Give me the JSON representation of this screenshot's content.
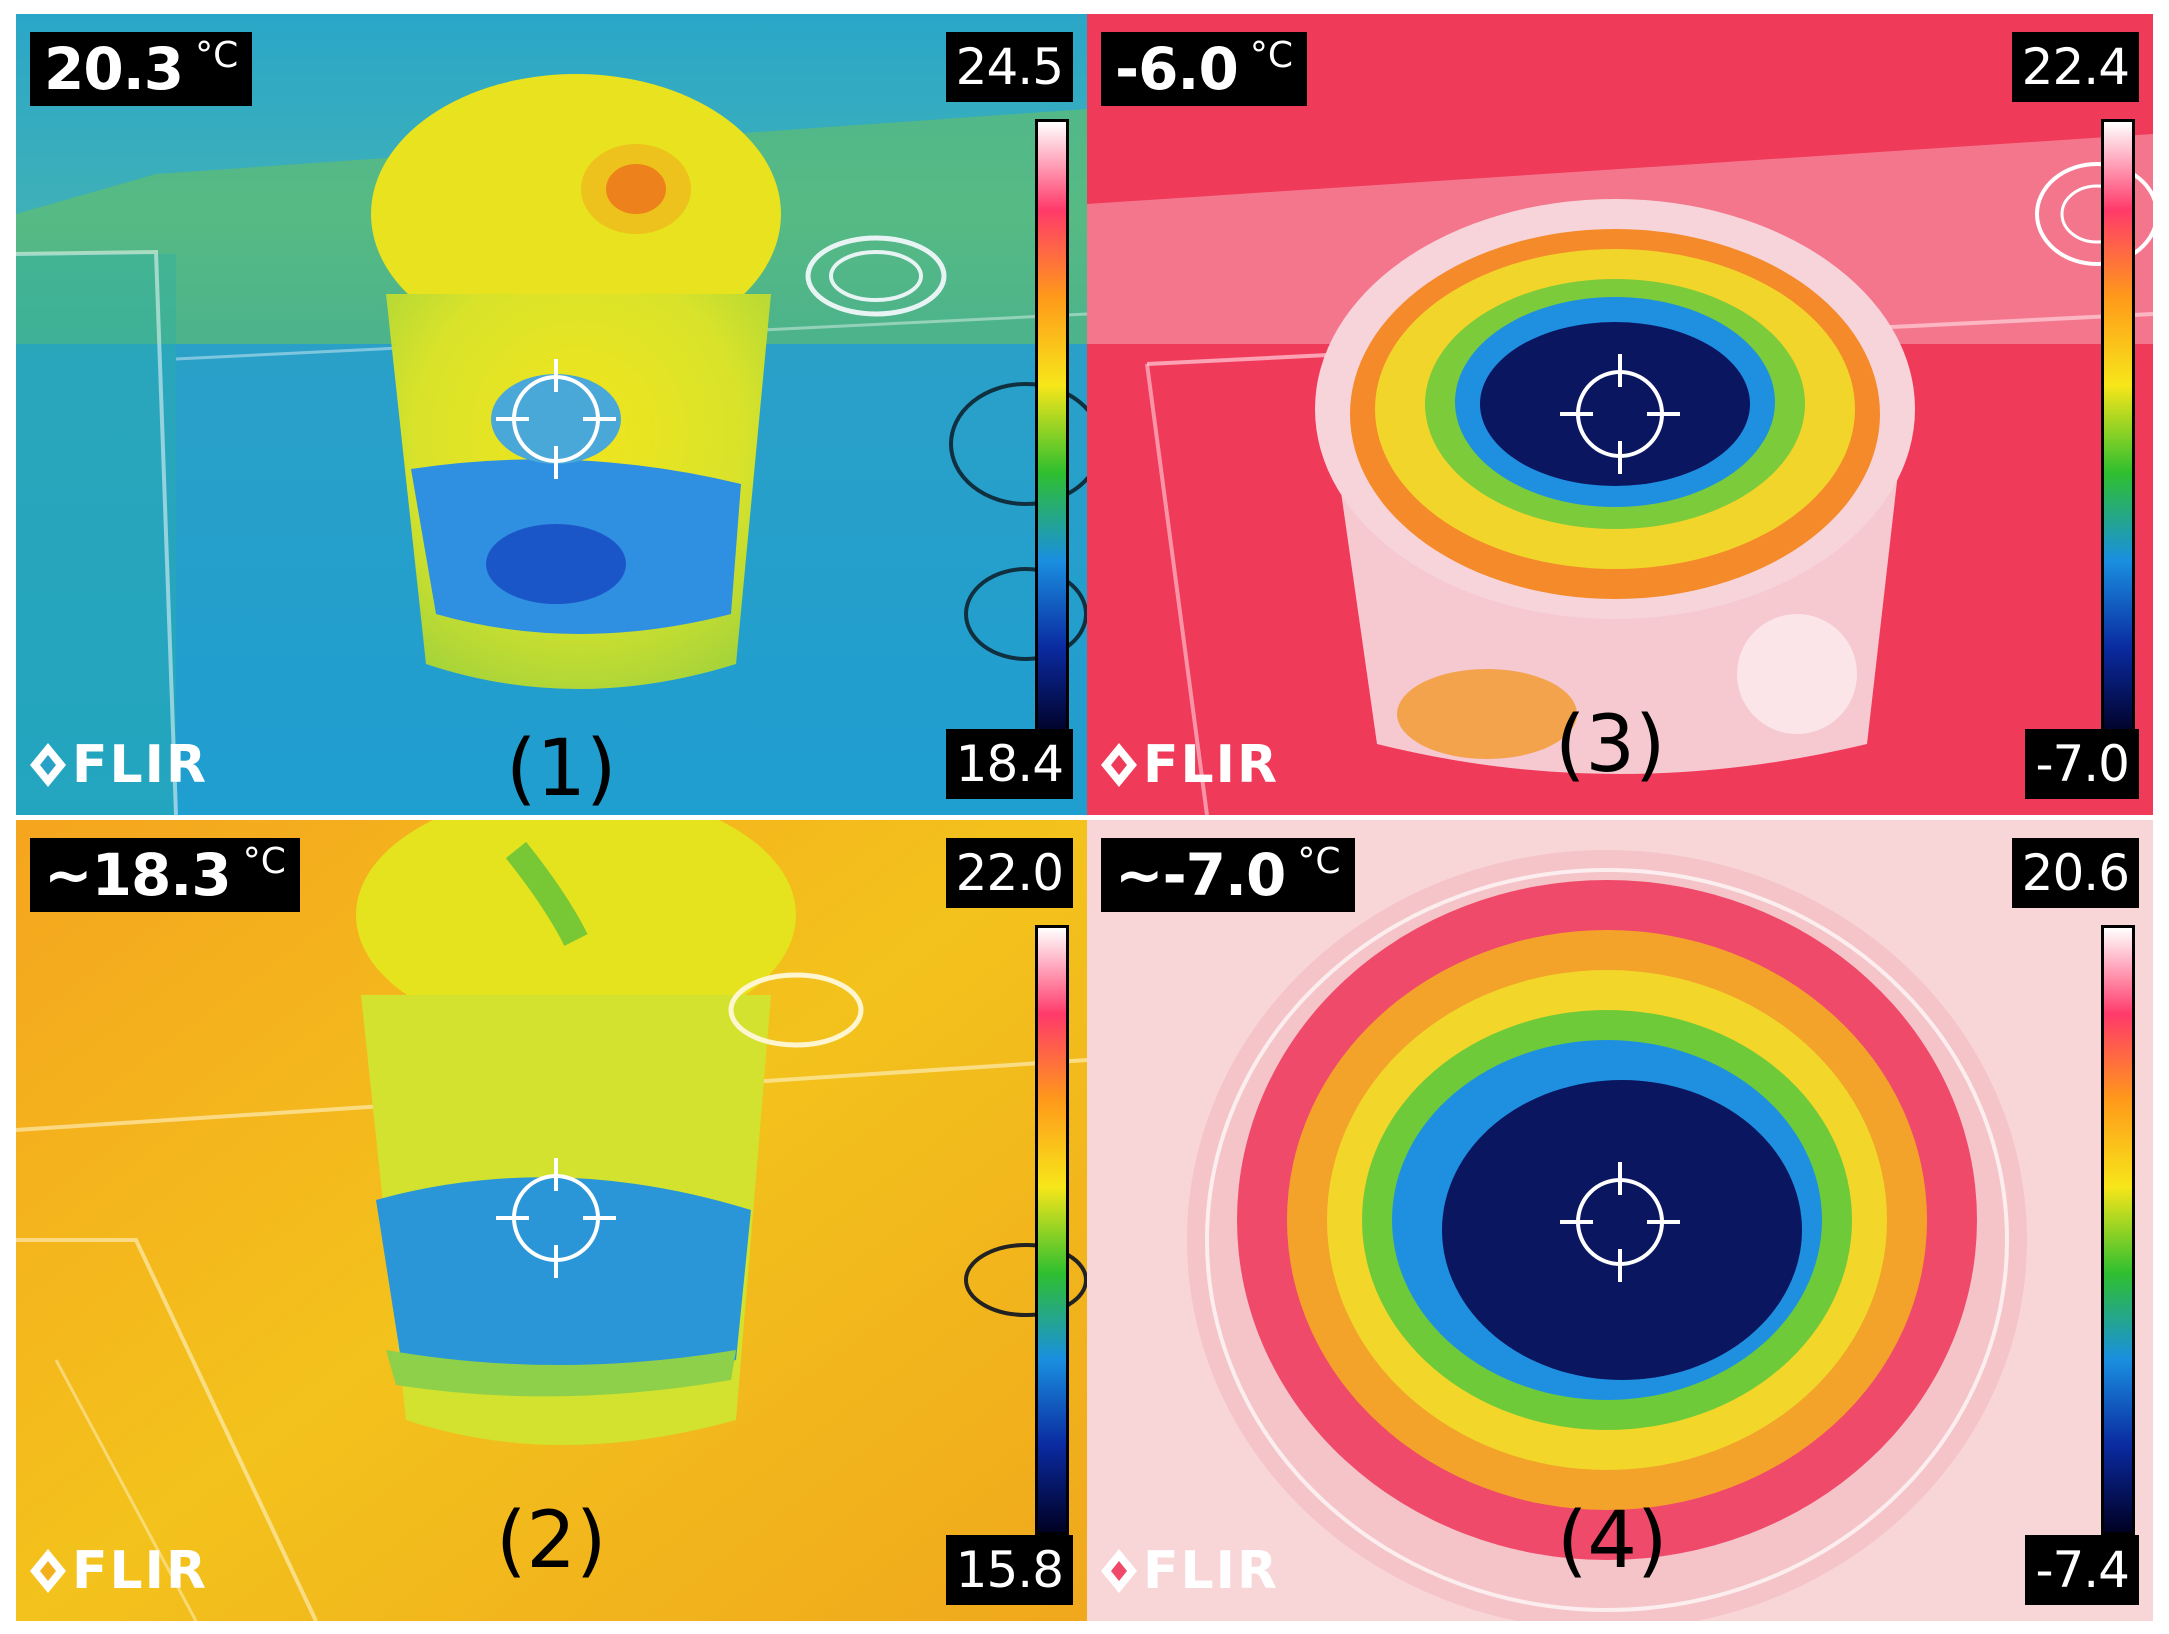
{
  "panels": [
    {
      "readout": "20.3",
      "unit": "°C",
      "scale_max": "24.5",
      "scale_min": "18.4",
      "caption": "(1)",
      "logo": "FLIR",
      "palette": "ironbow"
    },
    {
      "readout": "~18.3",
      "unit": "°C",
      "scale_max": "22.0",
      "scale_min": "15.8",
      "caption": "(2)",
      "logo": "FLIR",
      "palette": "ironbow"
    },
    {
      "readout": "-6.0",
      "unit": "°C",
      "scale_max": "22.4",
      "scale_min": "-7.0",
      "caption": "(3)",
      "logo": "FLIR",
      "palette": "ironbow"
    },
    {
      "readout": "~-7.0",
      "unit": "°C",
      "scale_max": "20.6",
      "scale_min": "-7.4",
      "caption": "(4)",
      "logo": "FLIR",
      "palette": "ironbow"
    }
  ],
  "colors": {
    "scale_gradient": [
      "#ffffff",
      "#ff3a6a",
      "#ff9a1a",
      "#f7e61a",
      "#2fbf2f",
      "#1a8fe0",
      "#0a2aa0",
      "#000022"
    ]
  }
}
